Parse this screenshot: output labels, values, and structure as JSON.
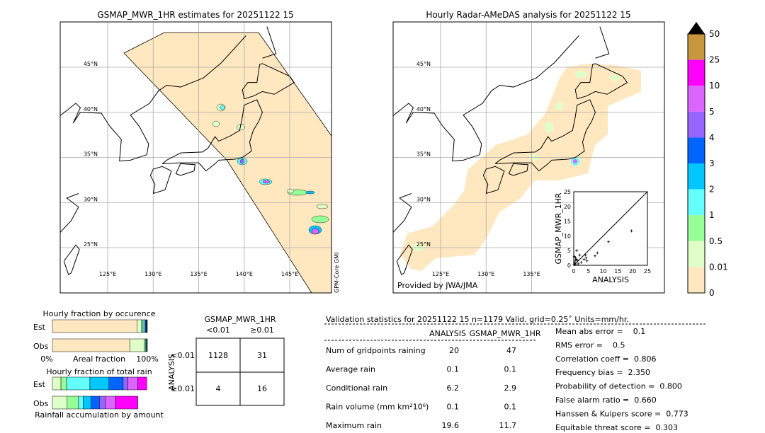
{
  "left_map": {
    "title": "GSMAP_MWR_1HR estimates for 20251122 15",
    "side_label": "GPM-Core GMI",
    "lat_labels": [
      "45°N",
      "40°N",
      "35°N",
      "30°N",
      "25°N"
    ],
    "lon_labels": [
      "125°E",
      "130°E",
      "135°E",
      "140°E",
      "145°E"
    ]
  },
  "right_map": {
    "title": "Hourly Radar-AMeDAS analysis for 20251122 15",
    "credit": "Provided by JWA/JMA",
    "lat_labels": [
      "45°N",
      "40°N",
      "35°N",
      "30°N",
      "25°N"
    ],
    "lon_labels": [
      "125°E",
      "130°E",
      "135°E"
    ]
  },
  "colorbar": {
    "labels": [
      "50",
      "25",
      "10",
      "5",
      "4",
      "3",
      "2",
      "1",
      "0.5",
      "0.01",
      "0"
    ],
    "colors": [
      "#c8963c",
      "#ff00ff",
      "#dc64ff",
      "#9664ff",
      "#0064ff",
      "#00c8ff",
      "#64ffff",
      "#96ff96",
      "#e0ffc8",
      "#ffe8c0"
    ],
    "extend_color": "#000000"
  },
  "chart_data": [
    {
      "type": "scatter",
      "xlabel": "ANALYSIS",
      "ylabel": "GSMAP_MWR_1HR",
      "xlim": [
        0,
        25
      ],
      "ylim": [
        0,
        25
      ],
      "ticks": [
        "0",
        "5",
        "10",
        "15",
        "20",
        "25"
      ],
      "points": [
        [
          19.6,
          11.7
        ],
        [
          11.8,
          8
        ],
        [
          8,
          4.2
        ],
        [
          7.2,
          3.2
        ],
        [
          4.5,
          1.5
        ],
        [
          4,
          3.5
        ],
        [
          3.5,
          2
        ],
        [
          2.5,
          1
        ],
        [
          2,
          3.5
        ],
        [
          1,
          5
        ],
        [
          0.8,
          2
        ],
        [
          0.5,
          1.5
        ],
        [
          0.3,
          0.8
        ],
        [
          1.5,
          0.5
        ],
        [
          0.2,
          3
        ],
        [
          0.1,
          0.2
        ],
        [
          0.5,
          0.3
        ],
        [
          1.2,
          1.8
        ],
        [
          4.2,
          2.5
        ],
        [
          0.6,
          2.5
        ]
      ]
    },
    {
      "type": "bar",
      "title": "Hourly fraction by occurence",
      "categories": [
        "Est",
        "Obs"
      ],
      "xlabel": "Areal fraction",
      "tick_left": "0%",
      "tick_right": "100%",
      "series": [
        [
          89,
          5,
          1.5,
          2,
          1,
          1.5
        ],
        [
          81.5,
          15,
          1.5,
          1,
          0.5,
          0.5
        ]
      ]
    },
    {
      "type": "bar",
      "title": "Hourly fraction of total rain",
      "categories": [
        "Est",
        "Obs"
      ],
      "xlabel": "Rainfall accumulation by amount",
      "series": [
        [
          9,
          6,
          24.5,
          20,
          15,
          5,
          10.5,
          9.5
        ],
        [
          15.5,
          12,
          5,
          8,
          9,
          6,
          11,
          23.5
        ]
      ]
    }
  ],
  "contingency": {
    "title": "GSMAP_MWR_1HR",
    "col_labels": [
      "<0.01",
      "≥0.01"
    ],
    "row_axis": "ANALYSIS",
    "row_labels": [
      "<0.01",
      "≥0.01"
    ],
    "cells": [
      "1128",
      "31",
      "4",
      "16"
    ]
  },
  "stats": {
    "header": "Validation statistics for 20251122 15  n=1179 Valid. grid=0.25˚ Units=mm/hr.",
    "col1": "ANALYSIS",
    "col2": "GSMAP_MWR_1HR",
    "rows": [
      {
        "label": "Num of gridpoints raining",
        "a": "20",
        "b": "47"
      },
      {
        "label": "Average rain",
        "a": "0.1",
        "b": "0.1"
      },
      {
        "label": "Conditional rain",
        "a": "6.2",
        "b": "2.9"
      },
      {
        "label": "Rain volume (mm km²10⁶)",
        "a": "0.1",
        "b": "0.1"
      },
      {
        "label": "Maximum rain",
        "a": "19.6",
        "b": "11.7"
      }
    ],
    "scores": [
      "Mean abs error =    0.1",
      "RMS error =    0.5",
      "Correlation coeff =  0.806",
      "Frequency bias =  2.350",
      "Probability of detection =  0.800",
      "False alarm ratio =  0.660",
      "Hanssen & Kuipers score =  0.773",
      "Equitable threat score =  0.303"
    ]
  }
}
